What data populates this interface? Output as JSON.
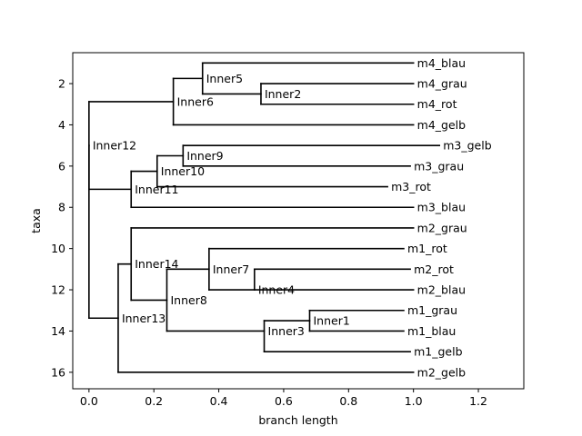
{
  "chart_data": {
    "type": "dendrogram",
    "xlabel": "branch length",
    "ylabel": "taxa",
    "xlim": [
      -0.05,
      1.34
    ],
    "ylim": [
      16.8,
      0.5
    ],
    "y_inverted": true,
    "grid": false,
    "xticks": [
      0.0,
      0.2,
      0.4,
      0.6,
      0.8,
      1.0,
      1.2
    ],
    "xtick_labels": [
      "0.0",
      "0.2",
      "0.4",
      "0.6",
      "0.8",
      "1.0",
      "1.2"
    ],
    "yticks": [
      2,
      4,
      6,
      8,
      10,
      12,
      14,
      16
    ],
    "ytick_labels": [
      "2",
      "4",
      "6",
      "8",
      "10",
      "12",
      "14",
      "16"
    ],
    "nodes": [
      {
        "name": "",
        "x": 0.0,
        "y": 9.0
      },
      {
        "name": "Inner12",
        "x": 0.0,
        "y": 5.0,
        "parent": 0
      },
      {
        "name": "Inner13",
        "x": 0.09,
        "y": 13.375,
        "parent": 0
      },
      {
        "name": "Inner6",
        "x": 0.26,
        "y": 2.875,
        "parent": 1
      },
      {
        "name": "Inner11",
        "x": 0.13,
        "y": 7.125,
        "parent": 1
      },
      {
        "name": "Inner5",
        "x": 0.35,
        "y": 1.75,
        "parent": 3
      },
      {
        "name": "m4_gelb",
        "x": 1.0,
        "y": 4.0,
        "parent": 3
      },
      {
        "name": "m4_blau",
        "x": 1.0,
        "y": 1.0,
        "parent": 5
      },
      {
        "name": "Inner2",
        "x": 0.53,
        "y": 2.5,
        "parent": 5
      },
      {
        "name": "m4_grau",
        "x": 1.0,
        "y": 2.0,
        "parent": 8
      },
      {
        "name": "m4_rot",
        "x": 1.0,
        "y": 3.0,
        "parent": 8
      },
      {
        "name": "Inner10",
        "x": 0.21,
        "y": 6.25,
        "parent": 4
      },
      {
        "name": "m3_blau",
        "x": 1.0,
        "y": 8.0,
        "parent": 4
      },
      {
        "name": "Inner9",
        "x": 0.29,
        "y": 5.5,
        "parent": 11
      },
      {
        "name": "m3_rot",
        "x": 0.92,
        "y": 7.0,
        "parent": 11
      },
      {
        "name": "m3_gelb",
        "x": 1.08,
        "y": 5.0,
        "parent": 13
      },
      {
        "name": "m3_grau",
        "x": 0.99,
        "y": 6.0,
        "parent": 13
      },
      {
        "name": "Inner14",
        "x": 0.13,
        "y": 10.75,
        "parent": 2
      },
      {
        "name": "m2_gelb",
        "x": 1.0,
        "y": 16.0,
        "parent": 2
      },
      {
        "name": "m2_grau",
        "x": 1.0,
        "y": 9.0,
        "parent": 17
      },
      {
        "name": "Inner8",
        "x": 0.24,
        "y": 12.5,
        "parent": 17
      },
      {
        "name": "Inner7",
        "x": 0.37,
        "y": 11.0,
        "parent": 20
      },
      {
        "name": "Inner3",
        "x": 0.54,
        "y": 14.0,
        "parent": 20
      },
      {
        "name": "m1_rot",
        "x": 0.97,
        "y": 10.0,
        "parent": 21
      },
      {
        "name": "Inner4",
        "x": 0.51,
        "y": 12.0,
        "parent": 21
      },
      {
        "name": "m2_rot",
        "x": 0.99,
        "y": 11.0,
        "parent": 24
      },
      {
        "name": "m2_blau",
        "x": 1.0,
        "y": 12.0,
        "parent": 24
      },
      {
        "name": "Inner1",
        "x": 0.68,
        "y": 13.5,
        "parent": 22
      },
      {
        "name": "m1_gelb",
        "x": 0.99,
        "y": 15.0,
        "parent": 22
      },
      {
        "name": "m1_grau",
        "x": 0.97,
        "y": 13.0,
        "parent": 27
      },
      {
        "name": "m1_blau",
        "x": 0.97,
        "y": 14.0,
        "parent": 27
      }
    ]
  }
}
